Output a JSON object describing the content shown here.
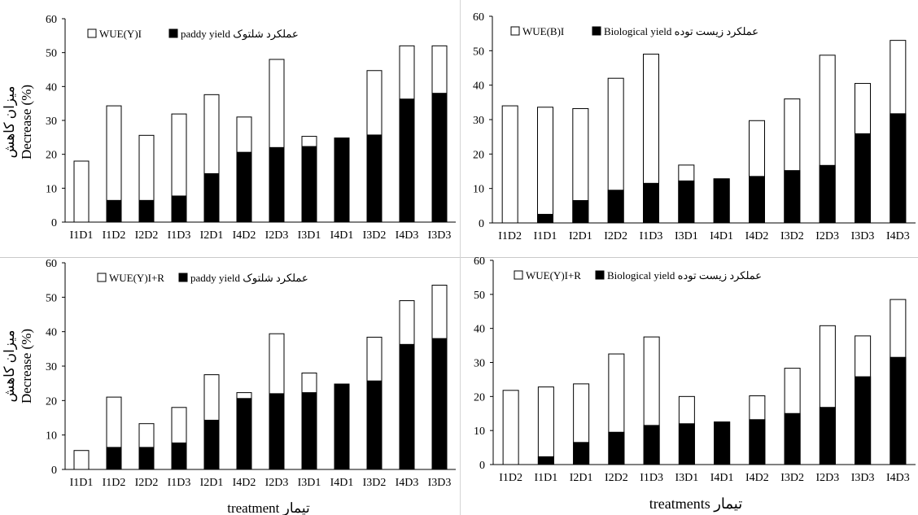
{
  "figure": {
    "ylabel_persian": "میزان کاهش",
    "ylabel_english": "Decrease (%)",
    "xlabel_left": "treatment تیمار",
    "xlabel_right": "treatments تیمار"
  },
  "chart_data": [
    {
      "type": "bar",
      "stacked": "overlay",
      "categories": [
        "I1D1",
        "I1D2",
        "I2D2",
        "I1D3",
        "I2D1",
        "I4D2",
        "I2D3",
        "I3D1",
        "I4D1",
        "I3D2",
        "I4D3",
        "I3D3"
      ],
      "series": [
        {
          "name": "WUE(Y)I",
          "color": "#ffffff",
          "values": [
            18,
            34.3,
            25.6,
            31.9,
            37.6,
            31,
            48,
            25.3,
            24.8,
            44.7,
            52,
            52
          ]
        },
        {
          "name": "paddy yield عملکرد شلتوک",
          "color": "#000000",
          "values": [
            0,
            6.4,
            6.4,
            7.7,
            14.3,
            20.6,
            22,
            22.3,
            24.8,
            25.7,
            36.3,
            38
          ]
        }
      ],
      "ylim": [
        0,
        60
      ],
      "yticks": [
        0,
        10,
        20,
        30,
        40,
        50,
        60
      ],
      "legend_position": "top-left"
    },
    {
      "type": "bar",
      "stacked": "overlay",
      "categories": [
        "I1D2",
        "I1D1",
        "I2D1",
        "I2D2",
        "I1D3",
        "I3D1",
        "I4D1",
        "I4D2",
        "I3D2",
        "I2D3",
        "I3D3",
        "I4D3"
      ],
      "series": [
        {
          "name": "WUE(B)I",
          "color": "#ffffff",
          "values": [
            34,
            33.6,
            33.2,
            42,
            49,
            16.8,
            12.8,
            29.7,
            36,
            48.7,
            40.5,
            53
          ]
        },
        {
          "name": "Biological yield عملکرد زیست توده",
          "color": "#000000",
          "values": [
            0,
            2.5,
            6.5,
            9.5,
            11.5,
            12.2,
            12.8,
            13.5,
            15.2,
            16.7,
            25.9,
            31.7
          ]
        }
      ],
      "ylim": [
        0,
        60
      ],
      "yticks": [
        0,
        10,
        20,
        30,
        40,
        50,
        60
      ],
      "legend_position": "top-left"
    },
    {
      "type": "bar",
      "stacked": "overlay",
      "categories": [
        "I1D1",
        "I1D2",
        "I2D2",
        "I1D3",
        "I2D1",
        "I4D2",
        "I2D3",
        "I3D1",
        "I4D1",
        "I3D2",
        "I4D3",
        "I3D3"
      ],
      "series": [
        {
          "name": "WUE(Y)I+R",
          "color": "#ffffff",
          "values": [
            5.5,
            21,
            13.3,
            18,
            27.5,
            22.3,
            39.4,
            28,
            24.8,
            38.4,
            49,
            53.5
          ]
        },
        {
          "name": "paddy yield عملکرد شلتوک",
          "color": "#000000",
          "values": [
            0,
            6.4,
            6.4,
            7.7,
            14.3,
            20.6,
            22,
            22.3,
            24.8,
            25.7,
            36.3,
            38
          ]
        }
      ],
      "ylim": [
        0,
        60
      ],
      "yticks": [
        0,
        10,
        20,
        30,
        40,
        50,
        60
      ],
      "legend_position": "top-left"
    },
    {
      "type": "bar",
      "stacked": "overlay",
      "categories": [
        "I1D2",
        "I1D1",
        "I2D1",
        "I2D2",
        "I1D3",
        "I3D1",
        "I4D1",
        "I4D2",
        "I3D2",
        "I2D3",
        "I3D3",
        "I4D3"
      ],
      "series": [
        {
          "name": "WUE(Y)I+R",
          "color": "#ffffff",
          "values": [
            21.8,
            22.8,
            23.7,
            32.5,
            37.5,
            20,
            12.5,
            20.2,
            28.3,
            40.8,
            37.8,
            48.5
          ]
        },
        {
          "name": "Biological yield عملکرد زیست توده",
          "color": "#000000",
          "values": [
            0,
            2.3,
            6.5,
            9.5,
            11.5,
            12,
            12.5,
            13.2,
            15,
            16.8,
            25.8,
            31.5
          ]
        }
      ],
      "ylim": [
        0,
        60
      ],
      "yticks": [
        0,
        10,
        20,
        30,
        40,
        50,
        60
      ],
      "legend_position": "top-left"
    }
  ]
}
